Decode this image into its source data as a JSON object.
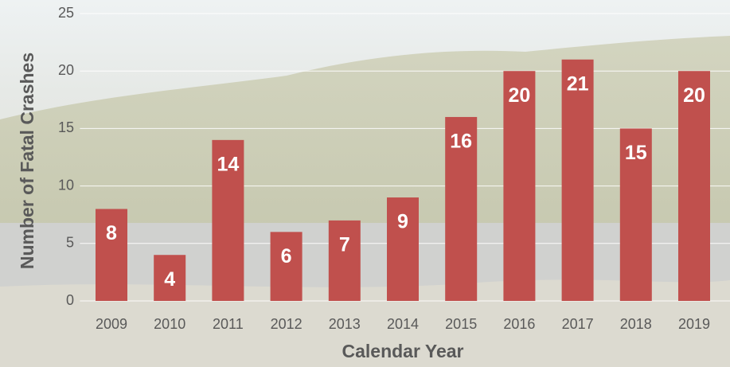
{
  "chart_data": {
    "type": "bar",
    "x_label": "Calendar Year",
    "y_label": "Number of Fatal Crashes",
    "categories": [
      "2009",
      "2010",
      "2011",
      "2012",
      "2013",
      "2014",
      "2015",
      "2016",
      "2017",
      "2018",
      "2019"
    ],
    "values": [
      8,
      4,
      14,
      6,
      7,
      9,
      16,
      20,
      21,
      15,
      20
    ],
    "color": "#c0504d",
    "ylim": [
      0,
      25
    ],
    "yticks": [
      0,
      5,
      10,
      15,
      20,
      25
    ],
    "grid": true
  }
}
